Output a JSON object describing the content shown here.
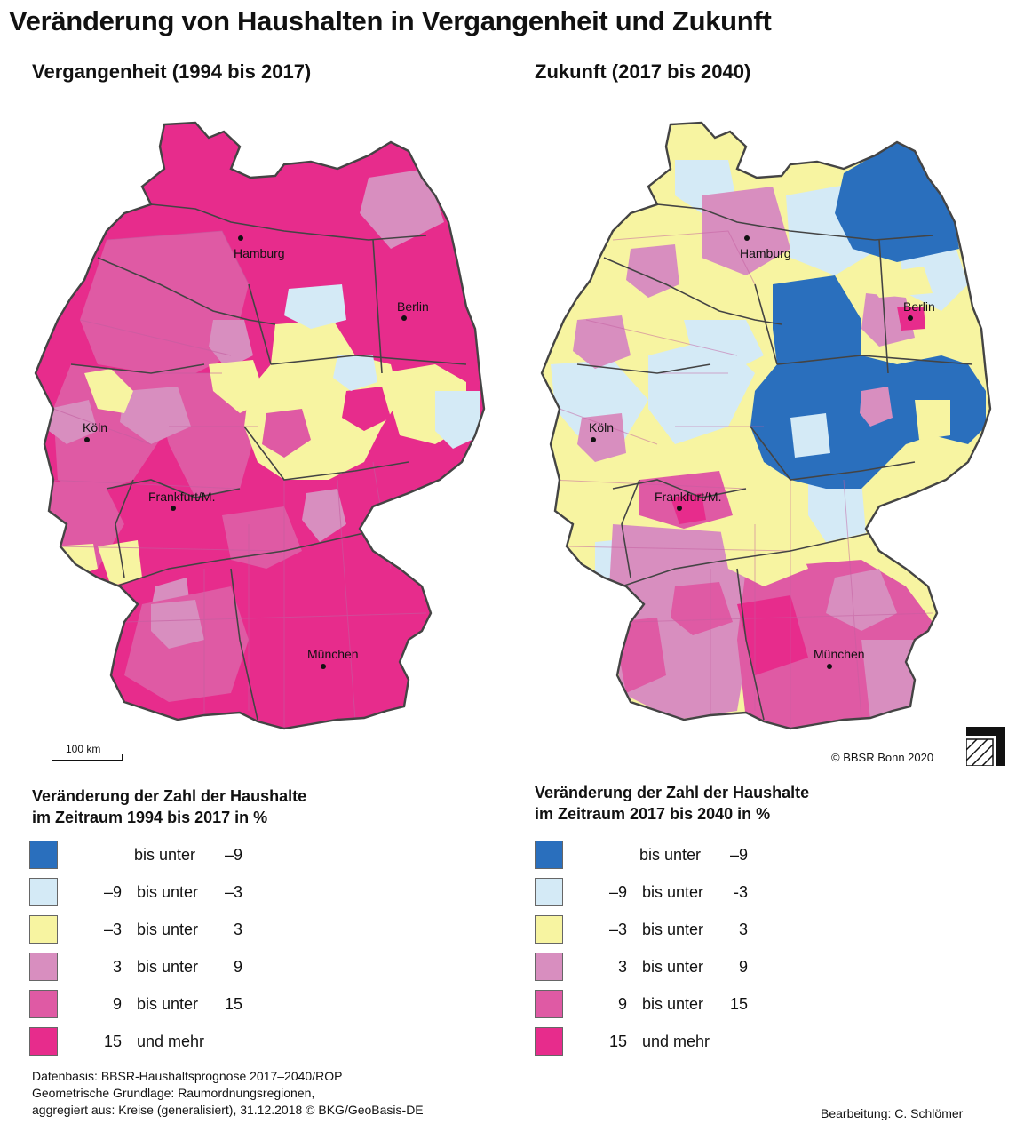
{
  "title": "Veränderung von Haushalten in Vergangenheit und Zukunft",
  "maps": [
    {
      "subtitle": "Vergangenheit (1994 bis 2017)",
      "legend_title_line1": "Veränderung der Zahl der Haushalte",
      "legend_title_line2": "im Zeitraum 1994 bis 2017 in %",
      "cities": {
        "hamburg": "Hamburg",
        "berlin": "Berlin",
        "koeln": "Köln",
        "frankfurt": "Frankfurt/M.",
        "muenchen": "München"
      }
    },
    {
      "subtitle": "Zukunft (2017 bis 2040)",
      "legend_title_line1": "Veränderung der Zahl der Haushalte",
      "legend_title_line2": "im Zeitraum 2017 bis 2040 in %",
      "cities": {
        "hamburg": "Hamburg",
        "berlin": "Berlin",
        "koeln": "Köln",
        "frankfurt": "Frankfurt/M.",
        "muenchen": "München"
      }
    }
  ],
  "legend_left": [
    {
      "color": "#2a6fbd",
      "a": "",
      "mid": "bis unter",
      "b": "–9"
    },
    {
      "color": "#d4eaf6",
      "a": "–9",
      "mid": "bis unter",
      "b": "–3"
    },
    {
      "color": "#f7f4a1",
      "a": "–3",
      "mid": "bis unter",
      "b": "3"
    },
    {
      "color": "#d88ebf",
      "a": "3",
      "mid": "bis unter",
      "b": "9"
    },
    {
      "color": "#df5aa4",
      "a": "9",
      "mid": "bis unter",
      "b": "15"
    },
    {
      "color": "#e72c8c",
      "a": "15",
      "mid": "und mehr",
      "b": ""
    }
  ],
  "legend_right": [
    {
      "color": "#2a6fbd",
      "a": "",
      "mid": "bis unter",
      "b": "–9"
    },
    {
      "color": "#d4eaf6",
      "a": "–9",
      "mid": "bis unter",
      "b": "-3"
    },
    {
      "color": "#f7f4a1",
      "a": "–3",
      "mid": "bis unter",
      "b": "3"
    },
    {
      "color": "#d88ebf",
      "a": "3",
      "mid": "bis unter",
      "b": "9"
    },
    {
      "color": "#df5aa4",
      "a": "9",
      "mid": "bis unter",
      "b": "15"
    },
    {
      "color": "#e72c8c",
      "a": "15",
      "mid": "und mehr",
      "b": ""
    }
  ],
  "scalebar_label": "100 km",
  "copyright": "© BBSR Bonn 2020",
  "footer_left": [
    "Datenbasis: BBSR-Haushaltsprognose 2017–2040/ROP",
    "Geometrische Grundlage: Raumordnungsregionen,",
    "aggregiert aus: Kreise (generalisiert), 31.12.2018 © BKG/GeoBasis-DE"
  ],
  "footer_right": "Bearbeitung: C. Schlömer"
}
